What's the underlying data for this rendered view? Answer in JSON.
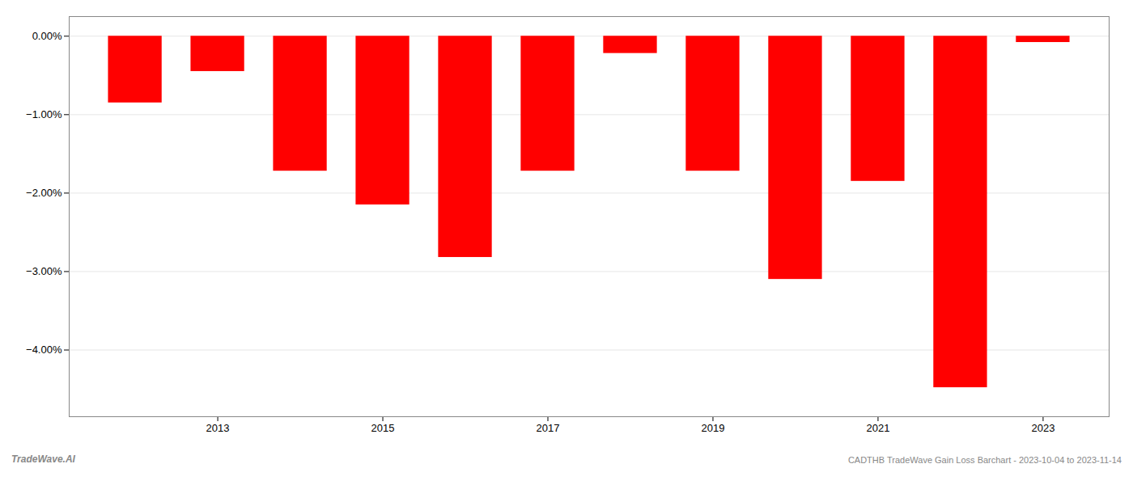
{
  "chart_data": {
    "type": "bar",
    "x": [
      2012,
      2013,
      2014,
      2015,
      2016,
      2017,
      2018,
      2019,
      2020,
      2021,
      2022,
      2023
    ],
    "values": [
      -0.85,
      -0.45,
      -1.72,
      -2.15,
      -2.82,
      -1.72,
      -0.22,
      -1.72,
      -3.1,
      -1.85,
      -4.48,
      -0.08
    ],
    "color": "#ff0000",
    "xlim": [
      2011.2,
      2023.8
    ],
    "xticks": [
      2013,
      2015,
      2017,
      2019,
      2021,
      2023
    ],
    "ylim": [
      -4.85,
      0.25
    ],
    "yticks": [
      {
        "value": 0.0,
        "label": "0.00%"
      },
      {
        "value": -1.0,
        "label": "−1.00%"
      },
      {
        "value": -2.0,
        "label": "−2.00%"
      },
      {
        "value": -3.0,
        "label": "−3.00%"
      },
      {
        "value": -4.0,
        "label": "−4.00%"
      }
    ],
    "grid": true,
    "annotations": [
      "TradeWave.AI",
      "CADTHB TradeWave Gain Loss Barchart - 2023-10-04 to 2023-11-14"
    ]
  }
}
